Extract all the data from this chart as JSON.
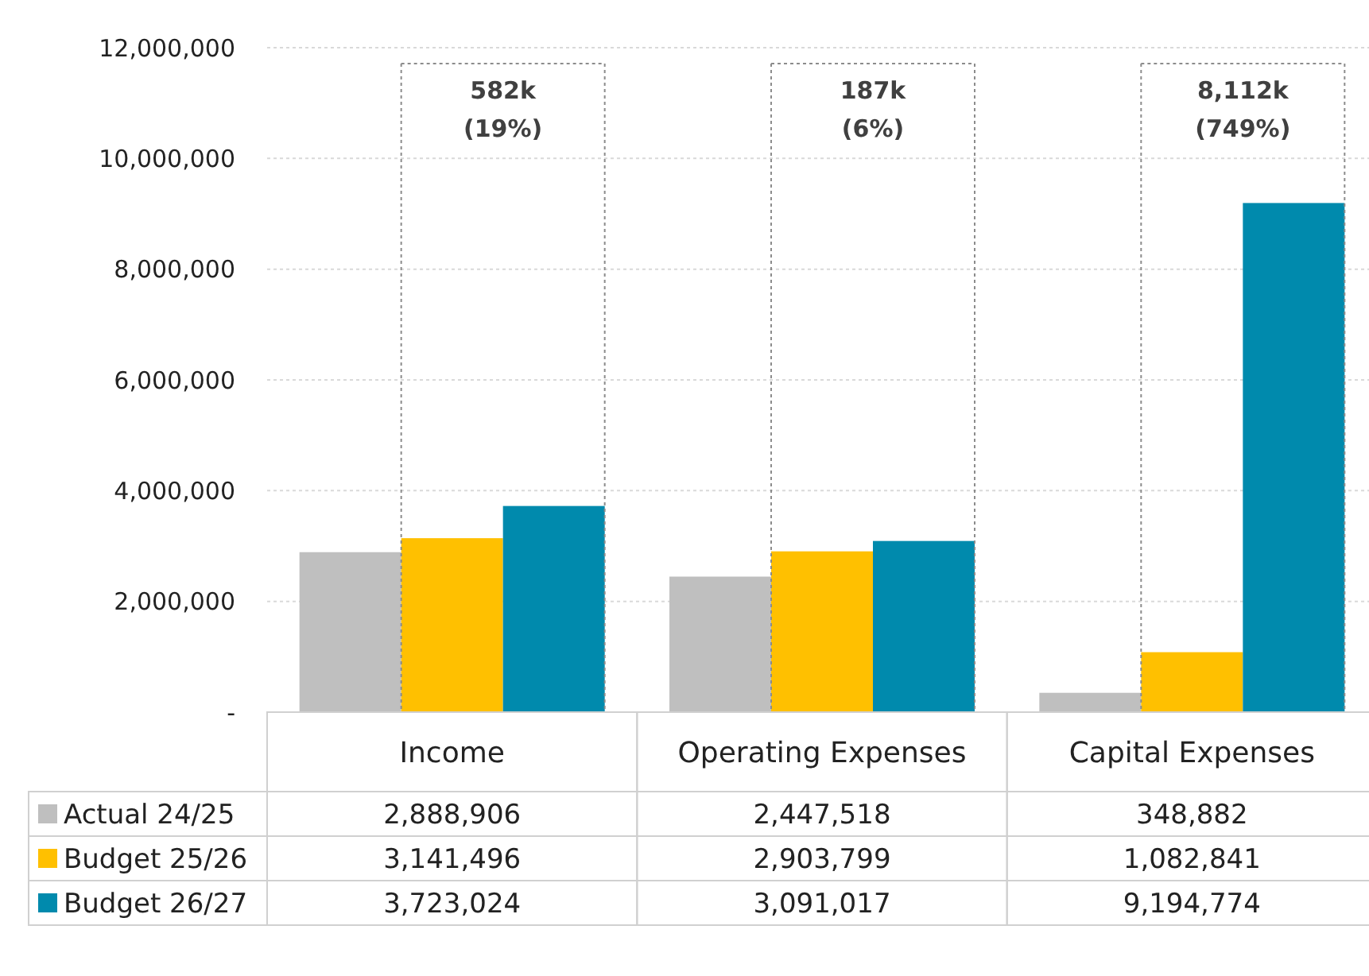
{
  "chart_data": {
    "type": "bar",
    "categories": [
      "Income",
      "Operating Expenses",
      "Capital Expenses"
    ],
    "series": [
      {
        "name": "Actual 24/25",
        "color": "#bfbfbf",
        "values": [
          2888906,
          2447518,
          348882
        ],
        "value_labels": [
          "2,888,906",
          "2,447,518",
          "348,882"
        ]
      },
      {
        "name": "Budget 25/26",
        "color": "#ffc000",
        "values": [
          3141496,
          2903799,
          1082841
        ],
        "value_labels": [
          "3,141,496",
          "2,903,799",
          "1,082,841"
        ]
      },
      {
        "name": "Budget 26/27",
        "color": "#008aad",
        "values": [
          3723024,
          3091017,
          9194774
        ],
        "value_labels": [
          "3,723,024",
          "3,091,017",
          "9,194,774"
        ]
      }
    ],
    "ylim": [
      0,
      12000000
    ],
    "yticks": [
      {
        "value": 0,
        "label": "-"
      },
      {
        "value": 2000000,
        "label": "2,000,000"
      },
      {
        "value": 4000000,
        "label": "4,000,000"
      },
      {
        "value": 6000000,
        "label": "6,000,000"
      },
      {
        "value": 8000000,
        "label": "8,000,000"
      },
      {
        "value": 10000000,
        "label": "10,000,000"
      },
      {
        "value": 12000000,
        "label": "12,000,000"
      }
    ],
    "grid": "y",
    "legend": "bottom",
    "annotations": [
      "582k\n(19%)",
      "187k\n(6%)",
      "8,112k\n(749%)"
    ]
  }
}
